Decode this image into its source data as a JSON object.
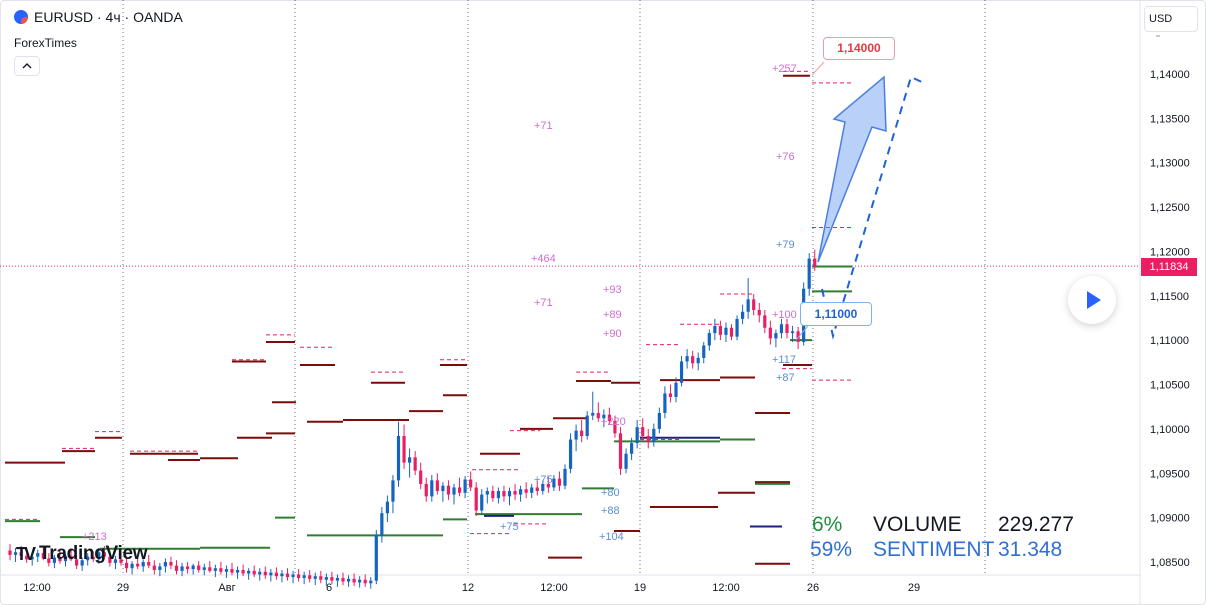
{
  "header": {
    "symbol": "EURUSD · 4ч · OANDA",
    "indicator": "ForexTimes",
    "collapse_icon": "chevron-up-icon"
  },
  "currency_button": "USD",
  "current_price_label": "1,11834",
  "logo_text": "TradingView",
  "colors": {
    "bull_candle": "#1565c0",
    "bear_candle": "#e91e63",
    "accent_blue": "#2962ff",
    "level_bull": "#2e7d32",
    "level_bear": "#7b0c0c",
    "level_label": "#cd6fd0",
    "price_line": "#e91e63"
  },
  "callouts": {
    "target": "1,14000",
    "entry": "1,11000"
  },
  "stats": {
    "pct_green": "6%",
    "pct_blue": "59%",
    "volume_label": "VOLUME",
    "volume_value": "229.277",
    "sentiment_label": "SENTIMENT",
    "sentiment_value": "31.348"
  },
  "chart_data": {
    "type": "candlestick",
    "ylim": [
      1.083,
      1.1475
    ],
    "y_ticks": [
      "1,14000",
      "1,13500",
      "1,13000",
      "1,12500",
      "1,12000",
      "1,11500",
      "1,11000",
      "1,10500",
      "1,10000",
      "1,09500",
      "1,09000",
      "1,08500"
    ],
    "y_tick_values": [
      1.14,
      1.135,
      1.13,
      1.125,
      1.12,
      1.115,
      1.11,
      1.105,
      1.1,
      1.095,
      1.09,
      1.085
    ],
    "x_ticks": [
      "12:00",
      "29",
      "Авг",
      "6",
      "12",
      "12:00",
      "19",
      "12:00",
      "26",
      "29"
    ],
    "last_price": 1.11834,
    "level_labels": [
      "+257",
      "+71",
      "+76",
      "+79",
      "+464",
      "+93",
      "+71",
      "+89",
      "+100",
      "+90",
      "+117",
      "+87",
      "+220",
      "+75",
      "+80",
      "+88",
      "+75",
      "+104",
      "+213"
    ],
    "candles": [
      {
        "t": 1,
        "o": 1.0863,
        "h": 1.087,
        "l": 1.0852,
        "c": 1.0858
      },
      {
        "t": 2,
        "o": 1.0858,
        "h": 1.0866,
        "l": 1.085,
        "c": 1.0861
      },
      {
        "t": 3,
        "o": 1.0861,
        "h": 1.0868,
        "l": 1.0855,
        "c": 1.0857
      },
      {
        "t": 4,
        "o": 1.0857,
        "h": 1.0862,
        "l": 1.0849,
        "c": 1.0853
      },
      {
        "t": 5,
        "o": 1.0853,
        "h": 1.086,
        "l": 1.0846,
        "c": 1.0856
      },
      {
        "t": 6,
        "o": 1.0856,
        "h": 1.0864,
        "l": 1.085,
        "c": 1.086
      },
      {
        "t": 7,
        "o": 1.086,
        "h": 1.0866,
        "l": 1.0852,
        "c": 1.0854
      },
      {
        "t": 8,
        "o": 1.0854,
        "h": 1.086,
        "l": 1.0845,
        "c": 1.0849
      },
      {
        "t": 9,
        "o": 1.0849,
        "h": 1.0858,
        "l": 1.0843,
        "c": 1.0855
      },
      {
        "t": 10,
        "o": 1.0855,
        "h": 1.0862,
        "l": 1.0848,
        "c": 1.0851
      },
      {
        "t": 11,
        "o": 1.0851,
        "h": 1.0859,
        "l": 1.0845,
        "c": 1.0857
      },
      {
        "t": 12,
        "o": 1.0857,
        "h": 1.0864,
        "l": 1.0851,
        "c": 1.0853
      },
      {
        "t": 13,
        "o": 1.0853,
        "h": 1.0858,
        "l": 1.0842,
        "c": 1.0846
      },
      {
        "t": 14,
        "o": 1.0846,
        "h": 1.0855,
        "l": 1.084,
        "c": 1.0852
      },
      {
        "t": 15,
        "o": 1.0852,
        "h": 1.086,
        "l": 1.0846,
        "c": 1.0856
      },
      {
        "t": 16,
        "o": 1.0856,
        "h": 1.0862,
        "l": 1.085,
        "c": 1.0853
      },
      {
        "t": 17,
        "o": 1.0853,
        "h": 1.0866,
        "l": 1.0848,
        "c": 1.0861
      },
      {
        "t": 18,
        "o": 1.0861,
        "h": 1.0868,
        "l": 1.0853,
        "c": 1.0856
      },
      {
        "t": 19,
        "o": 1.0856,
        "h": 1.0862,
        "l": 1.0845,
        "c": 1.0849
      },
      {
        "t": 20,
        "o": 1.0849,
        "h": 1.0857,
        "l": 1.0842,
        "c": 1.0853
      },
      {
        "t": 21,
        "o": 1.0853,
        "h": 1.086,
        "l": 1.0846,
        "c": 1.0849
      },
      {
        "t": 22,
        "o": 1.0849,
        "h": 1.0856,
        "l": 1.0838,
        "c": 1.0843
      },
      {
        "t": 23,
        "o": 1.0843,
        "h": 1.0851,
        "l": 1.0836,
        "c": 1.0848
      },
      {
        "t": 24,
        "o": 1.0848,
        "h": 1.0855,
        "l": 1.0842,
        "c": 1.0845
      },
      {
        "t": 25,
        "o": 1.0845,
        "h": 1.0853,
        "l": 1.0839,
        "c": 1.085
      },
      {
        "t": 26,
        "o": 1.085,
        "h": 1.0858,
        "l": 1.0843,
        "c": 1.0846
      },
      {
        "t": 27,
        "o": 1.0846,
        "h": 1.0852,
        "l": 1.0836,
        "c": 1.0841
      },
      {
        "t": 28,
        "o": 1.0841,
        "h": 1.0849,
        "l": 1.0834,
        "c": 1.0845
      },
      {
        "t": 29,
        "o": 1.0845,
        "h": 1.0854,
        "l": 1.0838,
        "c": 1.085
      },
      {
        "t": 30,
        "o": 1.085,
        "h": 1.0856,
        "l": 1.0842,
        "c": 1.0846
      },
      {
        "t": 31,
        "o": 1.0846,
        "h": 1.0852,
        "l": 1.0836,
        "c": 1.084
      },
      {
        "t": 32,
        "o": 1.084,
        "h": 1.0849,
        "l": 1.0834,
        "c": 1.0845
      },
      {
        "t": 33,
        "o": 1.0845,
        "h": 1.085,
        "l": 1.0837,
        "c": 1.0842
      },
      {
        "t": 34,
        "o": 1.0842,
        "h": 1.0848,
        "l": 1.0836,
        "c": 1.0846
      },
      {
        "t": 35,
        "o": 1.0846,
        "h": 1.0851,
        "l": 1.0838,
        "c": 1.0841
      },
      {
        "t": 36,
        "o": 1.0841,
        "h": 1.0848,
        "l": 1.0835,
        "c": 1.0844
      },
      {
        "t": 37,
        "o": 1.0844,
        "h": 1.0851,
        "l": 1.0838,
        "c": 1.084
      },
      {
        "t": 38,
        "o": 1.084,
        "h": 1.0847,
        "l": 1.0833,
        "c": 1.0843
      },
      {
        "t": 39,
        "o": 1.0843,
        "h": 1.085,
        "l": 1.0836,
        "c": 1.0839
      },
      {
        "t": 40,
        "o": 1.0839,
        "h": 1.0846,
        "l": 1.0832,
        "c": 1.0842
      },
      {
        "t": 41,
        "o": 1.0842,
        "h": 1.0849,
        "l": 1.0835,
        "c": 1.0838
      },
      {
        "t": 42,
        "o": 1.0838,
        "h": 1.0845,
        "l": 1.0831,
        "c": 1.0841
      },
      {
        "t": 43,
        "o": 1.0841,
        "h": 1.0847,
        "l": 1.0834,
        "c": 1.0837
      },
      {
        "t": 44,
        "o": 1.0837,
        "h": 1.0843,
        "l": 1.083,
        "c": 1.084
      },
      {
        "t": 45,
        "o": 1.084,
        "h": 1.0846,
        "l": 1.0833,
        "c": 1.0836
      },
      {
        "t": 46,
        "o": 1.0836,
        "h": 1.0843,
        "l": 1.0829,
        "c": 1.0839
      },
      {
        "t": 47,
        "o": 1.0839,
        "h": 1.0845,
        "l": 1.0831,
        "c": 1.0835
      },
      {
        "t": 48,
        "o": 1.0835,
        "h": 1.0842,
        "l": 1.0828,
        "c": 1.0838
      },
      {
        "t": 49,
        "o": 1.0838,
        "h": 1.0844,
        "l": 1.083,
        "c": 1.0834
      },
      {
        "t": 50,
        "o": 1.0834,
        "h": 1.0841,
        "l": 1.0827,
        "c": 1.0837
      },
      {
        "t": 51,
        "o": 1.0837,
        "h": 1.0843,
        "l": 1.0829,
        "c": 1.0833
      },
      {
        "t": 52,
        "o": 1.0833,
        "h": 1.084,
        "l": 1.0826,
        "c": 1.0836
      },
      {
        "t": 53,
        "o": 1.0836,
        "h": 1.0842,
        "l": 1.0828,
        "c": 1.0832
      },
      {
        "t": 54,
        "o": 1.0832,
        "h": 1.0839,
        "l": 1.0825,
        "c": 1.0835
      },
      {
        "t": 55,
        "o": 1.0835,
        "h": 1.0841,
        "l": 1.0827,
        "c": 1.0831
      },
      {
        "t": 56,
        "o": 1.0831,
        "h": 1.0838,
        "l": 1.0824,
        "c": 1.0834
      },
      {
        "t": 57,
        "o": 1.0834,
        "h": 1.084,
        "l": 1.0826,
        "c": 1.083
      },
      {
        "t": 58,
        "o": 1.083,
        "h": 1.0837,
        "l": 1.0823,
        "c": 1.0833
      },
      {
        "t": 59,
        "o": 1.0833,
        "h": 1.0839,
        "l": 1.0825,
        "c": 1.0829
      },
      {
        "t": 60,
        "o": 1.0829,
        "h": 1.0836,
        "l": 1.0822,
        "c": 1.0832
      },
      {
        "t": 61,
        "o": 1.0832,
        "h": 1.0838,
        "l": 1.0824,
        "c": 1.0828
      },
      {
        "t": 62,
        "o": 1.0828,
        "h": 1.0835,
        "l": 1.0822,
        "c": 1.0831
      },
      {
        "t": 63,
        "o": 1.0831,
        "h": 1.0837,
        "l": 1.0823,
        "c": 1.0827
      },
      {
        "t": 64,
        "o": 1.0827,
        "h": 1.0834,
        "l": 1.0821,
        "c": 1.083
      },
      {
        "t": 65,
        "o": 1.083,
        "h": 1.0836,
        "l": 1.0822,
        "c": 1.0826
      },
      {
        "t": 66,
        "o": 1.0826,
        "h": 1.0833,
        "l": 1.082,
        "c": 1.0829
      },
      {
        "t": 67,
        "o": 1.0829,
        "h": 1.0886,
        "l": 1.0825,
        "c": 1.088
      },
      {
        "t": 68,
        "o": 1.088,
        "h": 1.0912,
        "l": 1.0872,
        "c": 1.0905
      },
      {
        "t": 69,
        "o": 1.0905,
        "h": 1.0925,
        "l": 1.0895,
        "c": 1.0918
      },
      {
        "t": 70,
        "o": 1.0918,
        "h": 1.0948,
        "l": 1.0905,
        "c": 1.0942
      },
      {
        "t": 71,
        "o": 1.0942,
        "h": 1.1008,
        "l": 1.0935,
        "c": 1.0992
      },
      {
        "t": 72,
        "o": 1.0992,
        "h": 1.1005,
        "l": 1.0955,
        "c": 1.0962
      },
      {
        "t": 73,
        "o": 1.0962,
        "h": 1.0978,
        "l": 1.0945,
        "c": 1.0968
      },
      {
        "t": 74,
        "o": 1.0968,
        "h": 1.0975,
        "l": 1.0948,
        "c": 1.0953
      },
      {
        "t": 75,
        "o": 1.0953,
        "h": 1.0962,
        "l": 1.0932,
        "c": 1.0938
      },
      {
        "t": 76,
        "o": 1.0938,
        "h": 1.0945,
        "l": 1.0918,
        "c": 1.0924
      },
      {
        "t": 77,
        "o": 1.0924,
        "h": 1.0948,
        "l": 1.0918,
        "c": 1.0942
      },
      {
        "t": 78,
        "o": 1.0942,
        "h": 1.095,
        "l": 1.0926,
        "c": 1.093
      },
      {
        "t": 79,
        "o": 1.093,
        "h": 1.094,
        "l": 1.0918,
        "c": 1.0936
      },
      {
        "t": 80,
        "o": 1.0936,
        "h": 1.0942,
        "l": 1.092,
        "c": 1.0926
      },
      {
        "t": 81,
        "o": 1.0926,
        "h": 1.0938,
        "l": 1.0915,
        "c": 1.0934
      },
      {
        "t": 82,
        "o": 1.0934,
        "h": 1.0945,
        "l": 1.0924,
        "c": 1.0928
      },
      {
        "t": 83,
        "o": 1.0928,
        "h": 1.0947,
        "l": 1.0922,
        "c": 1.0943
      },
      {
        "t": 84,
        "o": 1.0943,
        "h": 1.0952,
        "l": 1.093,
        "c": 1.0934
      },
      {
        "t": 85,
        "o": 1.0934,
        "h": 1.094,
        "l": 1.0902,
        "c": 1.0908
      },
      {
        "t": 86,
        "o": 1.0908,
        "h": 1.0932,
        "l": 1.0904,
        "c": 1.0926
      },
      {
        "t": 87,
        "o": 1.0926,
        "h": 1.0934,
        "l": 1.0916,
        "c": 1.093
      },
      {
        "t": 88,
        "o": 1.093,
        "h": 1.0936,
        "l": 1.0918,
        "c": 1.0922
      },
      {
        "t": 89,
        "o": 1.0922,
        "h": 1.0934,
        "l": 1.0916,
        "c": 1.093
      },
      {
        "t": 90,
        "o": 1.093,
        "h": 1.0936,
        "l": 1.0918,
        "c": 1.0924
      },
      {
        "t": 91,
        "o": 1.0924,
        "h": 1.0934,
        "l": 1.0914,
        "c": 1.093
      },
      {
        "t": 92,
        "o": 1.093,
        "h": 1.0938,
        "l": 1.092,
        "c": 1.0926
      },
      {
        "t": 93,
        "o": 1.0926,
        "h": 1.0936,
        "l": 1.0918,
        "c": 1.0932
      },
      {
        "t": 94,
        "o": 1.0932,
        "h": 1.094,
        "l": 1.0922,
        "c": 1.0928
      },
      {
        "t": 95,
        "o": 1.0928,
        "h": 1.0938,
        "l": 1.0922,
        "c": 1.0934
      },
      {
        "t": 96,
        "o": 1.0934,
        "h": 1.0942,
        "l": 1.0925,
        "c": 1.093
      },
      {
        "t": 97,
        "o": 1.093,
        "h": 1.0942,
        "l": 1.0926,
        "c": 1.0938
      },
      {
        "t": 98,
        "o": 1.0938,
        "h": 1.0946,
        "l": 1.0928,
        "c": 1.0934
      },
      {
        "t": 99,
        "o": 1.0934,
        "h": 1.0948,
        "l": 1.093,
        "c": 1.0944
      },
      {
        "t": 100,
        "o": 1.0944,
        "h": 1.0952,
        "l": 1.093,
        "c": 1.0936
      },
      {
        "t": 101,
        "o": 1.0936,
        "h": 1.096,
        "l": 1.0932,
        "c": 1.0955
      },
      {
        "t": 102,
        "o": 1.0955,
        "h": 1.0995,
        "l": 1.095,
        "c": 1.0988
      },
      {
        "t": 103,
        "o": 1.0988,
        "h": 1.1005,
        "l": 1.0975,
        "c": 1.0998
      },
      {
        "t": 104,
        "o": 1.0998,
        "h": 1.101,
        "l": 1.0985,
        "c": 1.0992
      },
      {
        "t": 105,
        "o": 1.0992,
        "h": 1.102,
        "l": 1.0988,
        "c": 1.1015
      },
      {
        "t": 106,
        "o": 1.1015,
        "h": 1.1042,
        "l": 1.101,
        "c": 1.1018
      },
      {
        "t": 107,
        "o": 1.1018,
        "h": 1.103,
        "l": 1.1008,
        "c": 1.1012
      },
      {
        "t": 108,
        "o": 1.1012,
        "h": 1.1022,
        "l": 1.1002,
        "c": 1.1016
      },
      {
        "t": 109,
        "o": 1.1016,
        "h": 1.1024,
        "l": 1.1005,
        "c": 1.1009
      },
      {
        "t": 110,
        "o": 1.1009,
        "h": 1.1015,
        "l": 1.099,
        "c": 1.0995
      },
      {
        "t": 111,
        "o": 1.0995,
        "h": 1.1002,
        "l": 1.0948,
        "c": 1.0955
      },
      {
        "t": 112,
        "o": 1.0955,
        "h": 1.0978,
        "l": 1.095,
        "c": 1.0972
      },
      {
        "t": 113,
        "o": 1.0972,
        "h": 1.099,
        "l": 1.0965,
        "c": 1.0984
      },
      {
        "t": 114,
        "o": 1.0984,
        "h": 1.101,
        "l": 1.0978,
        "c": 1.1002
      },
      {
        "t": 115,
        "o": 1.1002,
        "h": 1.1012,
        "l": 1.0986,
        "c": 1.0992
      },
      {
        "t": 116,
        "o": 1.0992,
        "h": 1.1,
        "l": 1.0978,
        "c": 1.0985
      },
      {
        "t": 117,
        "o": 1.0985,
        "h": 1.1006,
        "l": 1.098,
        "c": 1.1
      },
      {
        "t": 118,
        "o": 1.1,
        "h": 1.1024,
        "l": 1.0995,
        "c": 1.1018
      },
      {
        "t": 119,
        "o": 1.1018,
        "h": 1.1048,
        "l": 1.1012,
        "c": 1.104
      },
      {
        "t": 120,
        "o": 1.104,
        "h": 1.105,
        "l": 1.103,
        "c": 1.1036
      },
      {
        "t": 121,
        "o": 1.1036,
        "h": 1.1058,
        "l": 1.103,
        "c": 1.1052
      },
      {
        "t": 122,
        "o": 1.1052,
        "h": 1.1082,
        "l": 1.1048,
        "c": 1.1076
      },
      {
        "t": 123,
        "o": 1.1076,
        "h": 1.109,
        "l": 1.1068,
        "c": 1.1082
      },
      {
        "t": 124,
        "o": 1.1082,
        "h": 1.1088,
        "l": 1.1068,
        "c": 1.1074
      },
      {
        "t": 125,
        "o": 1.1074,
        "h": 1.1086,
        "l": 1.1066,
        "c": 1.108
      },
      {
        "t": 126,
        "o": 1.108,
        "h": 1.1098,
        "l": 1.1074,
        "c": 1.1094
      },
      {
        "t": 127,
        "o": 1.1094,
        "h": 1.1112,
        "l": 1.1088,
        "c": 1.1108
      },
      {
        "t": 128,
        "o": 1.1108,
        "h": 1.1124,
        "l": 1.11,
        "c": 1.1116
      },
      {
        "t": 129,
        "o": 1.1116,
        "h": 1.1122,
        "l": 1.11,
        "c": 1.1106
      },
      {
        "t": 130,
        "o": 1.1106,
        "h": 1.112,
        "l": 1.1098,
        "c": 1.1114
      },
      {
        "t": 131,
        "o": 1.1114,
        "h": 1.1118,
        "l": 1.11,
        "c": 1.1104
      },
      {
        "t": 132,
        "o": 1.1104,
        "h": 1.1128,
        "l": 1.11,
        "c": 1.1124
      },
      {
        "t": 133,
        "o": 1.1124,
        "h": 1.114,
        "l": 1.1118,
        "c": 1.1132
      },
      {
        "t": 134,
        "o": 1.1132,
        "h": 1.117,
        "l": 1.1124,
        "c": 1.1146
      },
      {
        "t": 135,
        "o": 1.1146,
        "h": 1.1152,
        "l": 1.1128,
        "c": 1.1134
      },
      {
        "t": 136,
        "o": 1.1134,
        "h": 1.1142,
        "l": 1.112,
        "c": 1.1128
      },
      {
        "t": 137,
        "o": 1.1128,
        "h": 1.1134,
        "l": 1.1108,
        "c": 1.1114
      },
      {
        "t": 138,
        "o": 1.1114,
        "h": 1.1122,
        "l": 1.1095,
        "c": 1.1102
      },
      {
        "t": 139,
        "o": 1.1102,
        "h": 1.1112,
        "l": 1.1092,
        "c": 1.1108
      },
      {
        "t": 140,
        "o": 1.1108,
        "h": 1.1124,
        "l": 1.1102,
        "c": 1.1118
      },
      {
        "t": 141,
        "o": 1.1118,
        "h": 1.1124,
        "l": 1.1102,
        "c": 1.1108
      },
      {
        "t": 142,
        "o": 1.1108,
        "h": 1.1116,
        "l": 1.1098,
        "c": 1.111
      },
      {
        "t": 143,
        "o": 1.111,
        "h": 1.1115,
        "l": 1.109,
        "c": 1.1098
      },
      {
        "t": 144,
        "o": 1.1098,
        "h": 1.1165,
        "l": 1.1094,
        "c": 1.1158
      },
      {
        "t": 145,
        "o": 1.1158,
        "h": 1.1198,
        "l": 1.115,
        "c": 1.1192
      },
      {
        "t": 146,
        "o": 1.1192,
        "h": 1.1202,
        "l": 1.1178,
        "c": 1.1183
      }
    ]
  }
}
